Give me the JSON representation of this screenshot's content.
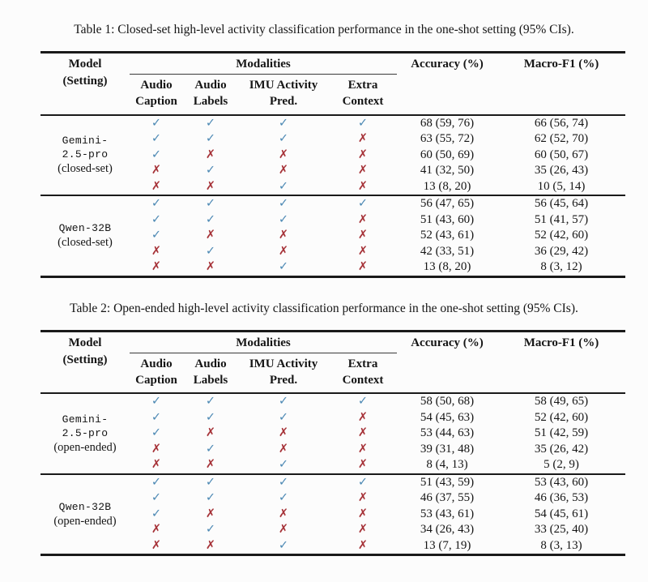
{
  "colors": {
    "check": "#4d89b4",
    "cross": "#a63238",
    "rule": "#1a1a1a",
    "text": "#151515",
    "background": "#fcfcfc"
  },
  "glyphs": {
    "check": "✓",
    "cross": "✗"
  },
  "header": {
    "model_line1": "Model",
    "model_line2": "(Setting)",
    "modalities": "Modalities",
    "subcols": [
      [
        "Audio",
        "Caption"
      ],
      [
        "Audio",
        "Labels"
      ],
      [
        "IMU Activity",
        "Pred."
      ],
      [
        "Extra",
        "Context"
      ]
    ],
    "accuracy": "Accuracy (%)",
    "macrof1": "Macro-F1 (%)"
  },
  "tables": [
    {
      "caption": "Table 1: Closed-set high-level activity classification performance in the one-shot setting (95% CIs).",
      "groups": [
        {
          "model_lines": [
            {
              "text": "Gemini-",
              "mono": true
            },
            {
              "text": "2.5-pro",
              "mono": true
            },
            {
              "text": "(closed-set)",
              "mono": false
            }
          ],
          "rows": [
            {
              "mods": [
                true,
                true,
                true,
                true
              ],
              "accuracy": "68 (59, 76)",
              "macro_f1": "66 (56, 74)"
            },
            {
              "mods": [
                true,
                true,
                true,
                false
              ],
              "accuracy": "63 (55, 72)",
              "macro_f1": "62 (52, 70)"
            },
            {
              "mods": [
                true,
                false,
                false,
                false
              ],
              "accuracy": "60 (50, 69)",
              "macro_f1": "60 (50, 67)"
            },
            {
              "mods": [
                false,
                true,
                false,
                false
              ],
              "accuracy": "41 (32, 50)",
              "macro_f1": "35 (26, 43)"
            },
            {
              "mods": [
                false,
                false,
                true,
                false
              ],
              "accuracy": "13 (8, 20)",
              "macro_f1": "10 (5, 14)"
            }
          ]
        },
        {
          "model_lines": [
            {
              "text": "Qwen-32B",
              "mono": true
            },
            {
              "text": "(closed-set)",
              "mono": false
            }
          ],
          "rows": [
            {
              "mods": [
                true,
                true,
                true,
                true
              ],
              "accuracy": "56 (47, 65)",
              "macro_f1": "56 (45, 64)"
            },
            {
              "mods": [
                true,
                true,
                true,
                false
              ],
              "accuracy": "51 (43, 60)",
              "macro_f1": "51 (41, 57)"
            },
            {
              "mods": [
                true,
                false,
                false,
                false
              ],
              "accuracy": "52 (43, 61)",
              "macro_f1": "52 (42, 60)"
            },
            {
              "mods": [
                false,
                true,
                false,
                false
              ],
              "accuracy": "42 (33, 51)",
              "macro_f1": "36 (29, 42)"
            },
            {
              "mods": [
                false,
                false,
                true,
                false
              ],
              "accuracy": "13 (8, 20)",
              "macro_f1": "8 (3, 12)"
            }
          ]
        }
      ]
    },
    {
      "caption": "Table 2: Open-ended high-level activity classification performance in the one-shot setting (95% CIs).",
      "groups": [
        {
          "model_lines": [
            {
              "text": "Gemini-",
              "mono": true
            },
            {
              "text": "2.5-pro",
              "mono": true
            },
            {
              "text": "(open-ended)",
              "mono": false
            }
          ],
          "rows": [
            {
              "mods": [
                true,
                true,
                true,
                true
              ],
              "accuracy": "58 (50, 68)",
              "macro_f1": "58 (49, 65)"
            },
            {
              "mods": [
                true,
                true,
                true,
                false
              ],
              "accuracy": "54 (45, 63)",
              "macro_f1": "52 (42, 60)"
            },
            {
              "mods": [
                true,
                false,
                false,
                false
              ],
              "accuracy": "53 (44, 63)",
              "macro_f1": "51 (42, 59)"
            },
            {
              "mods": [
                false,
                true,
                false,
                false
              ],
              "accuracy": "39 (31, 48)",
              "macro_f1": "35 (26, 42)"
            },
            {
              "mods": [
                false,
                false,
                true,
                false
              ],
              "accuracy": "8 (4, 13)",
              "macro_f1": "5 (2, 9)"
            }
          ]
        },
        {
          "model_lines": [
            {
              "text": "Qwen-32B",
              "mono": true
            },
            {
              "text": "(open-ended)",
              "mono": false
            }
          ],
          "rows": [
            {
              "mods": [
                true,
                true,
                true,
                true
              ],
              "accuracy": "51 (43, 59)",
              "macro_f1": "53 (43, 60)"
            },
            {
              "mods": [
                true,
                true,
                true,
                false
              ],
              "accuracy": "46 (37, 55)",
              "macro_f1": "46 (36, 53)"
            },
            {
              "mods": [
                true,
                false,
                false,
                false
              ],
              "accuracy": "53 (43, 61)",
              "macro_f1": "54 (45, 61)"
            },
            {
              "mods": [
                false,
                true,
                false,
                false
              ],
              "accuracy": "34 (26, 43)",
              "macro_f1": "33 (25, 40)"
            },
            {
              "mods": [
                false,
                false,
                true,
                false
              ],
              "accuracy": "13 (7, 19)",
              "macro_f1": "8 (3, 13)"
            }
          ]
        }
      ]
    }
  ]
}
